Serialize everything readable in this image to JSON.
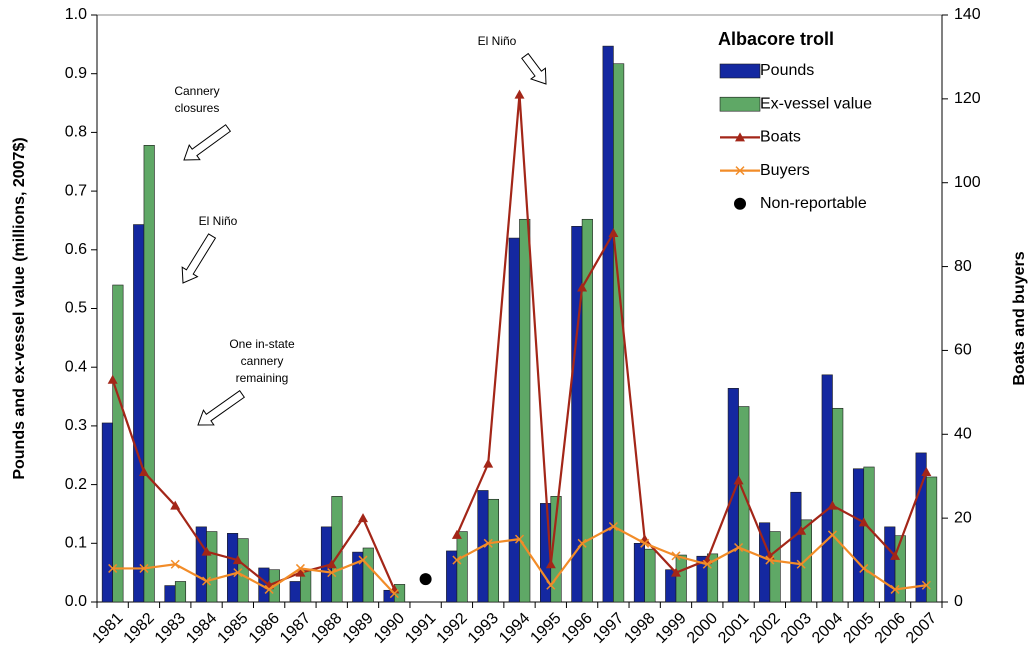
{
  "chart_data": {
    "type": "bar",
    "categories": [
      "1981",
      "1982",
      "1983",
      "1984",
      "1985",
      "1986",
      "1987",
      "1988",
      "1989",
      "1990",
      "1991",
      "1992",
      "1993",
      "1994",
      "1995",
      "1996",
      "1997",
      "1998",
      "1999",
      "2000",
      "2001",
      "2002",
      "2003",
      "2004",
      "2005",
      "2006",
      "2007"
    ],
    "ylabel": "Pounds and ex-vessel value (millions, 2007$)",
    "y2label": "Boats and buyers",
    "ylim": [
      0,
      1
    ],
    "yticks": [
      {
        "value": 0,
        "label": "0.0"
      },
      {
        "value": 0.1,
        "label": "0.1"
      },
      {
        "value": 0.2,
        "label": "0.2"
      },
      {
        "value": 0.3,
        "label": "0.3"
      },
      {
        "value": 0.4,
        "label": "0.4"
      },
      {
        "value": 0.5,
        "label": "0.5"
      },
      {
        "value": 0.6,
        "label": "0.6"
      },
      {
        "value": 0.7,
        "label": "0.7"
      },
      {
        "value": 0.8,
        "label": "0.8"
      },
      {
        "value": 0.9,
        "label": "0.9"
      },
      {
        "value": 1,
        "label": "1.0"
      }
    ],
    "y2lim": [
      0,
      140
    ],
    "y2ticks": [
      0,
      20,
      40,
      60,
      80,
      100,
      120,
      140
    ],
    "legend": "top-right",
    "legend_title": "Albacore troll",
    "grid": false,
    "series": [
      {
        "name": "Pounds",
        "type": "bar",
        "color": "#1428a0",
        "values": [
          0.305,
          0.643,
          0.028,
          0.128,
          0.117,
          0.058,
          0.035,
          0.128,
          0.085,
          0.02,
          null,
          0.087,
          0.19,
          0.62,
          0.168,
          0.64,
          0.947,
          0.1,
          0.055,
          0.078,
          0.364,
          0.135,
          0.187,
          0.387,
          0.227,
          0.128,
          0.254
        ]
      },
      {
        "name": "Ex-vessel value",
        "type": "bar",
        "color": "#5fa866",
        "values": [
          0.54,
          0.778,
          0.035,
          0.12,
          0.108,
          0.055,
          0.055,
          0.18,
          0.092,
          0.03,
          null,
          0.12,
          0.175,
          0.652,
          0.18,
          0.652,
          0.917,
          0.09,
          0.08,
          0.082,
          0.333,
          0.12,
          0.14,
          0.33,
          0.23,
          0.113,
          0.213
        ]
      },
      {
        "name": "Boats",
        "type": "line",
        "axis": "y2",
        "marker": "triangle",
        "color": "#a32618",
        "values": [
          53,
          31,
          23,
          12,
          10,
          4,
          7,
          9,
          20,
          3,
          null,
          16,
          33,
          121,
          9,
          75,
          88,
          15,
          7,
          10,
          29,
          11,
          17,
          23,
          19,
          11,
          31
        ]
      },
      {
        "name": "Buyers",
        "type": "line",
        "axis": "y2",
        "marker": "x",
        "color": "#f28c28",
        "values": [
          8,
          8,
          9,
          5,
          7,
          3,
          8,
          7,
          10,
          2,
          null,
          10,
          14,
          15,
          4,
          14,
          18,
          14,
          11,
          9,
          13,
          10,
          9,
          16,
          8,
          3,
          4
        ]
      },
      {
        "name": "Non-reportable",
        "type": "scatter",
        "marker": "circle",
        "color": "#000000",
        "values": [
          null,
          null,
          null,
          null,
          null,
          null,
          null,
          null,
          null,
          null,
          0.039,
          null,
          null,
          null,
          null,
          null,
          null,
          null,
          null,
          null,
          null,
          null,
          null,
          null,
          null,
          null,
          null
        ]
      }
    ],
    "annotations": [
      {
        "lines": [
          "Cannery",
          "closures"
        ]
      },
      {
        "lines": [
          "El Niño"
        ]
      },
      {
        "lines": [
          "One in-state",
          "cannery",
          "remaining"
        ]
      },
      {
        "lines": [
          "El Niño"
        ]
      }
    ]
  }
}
